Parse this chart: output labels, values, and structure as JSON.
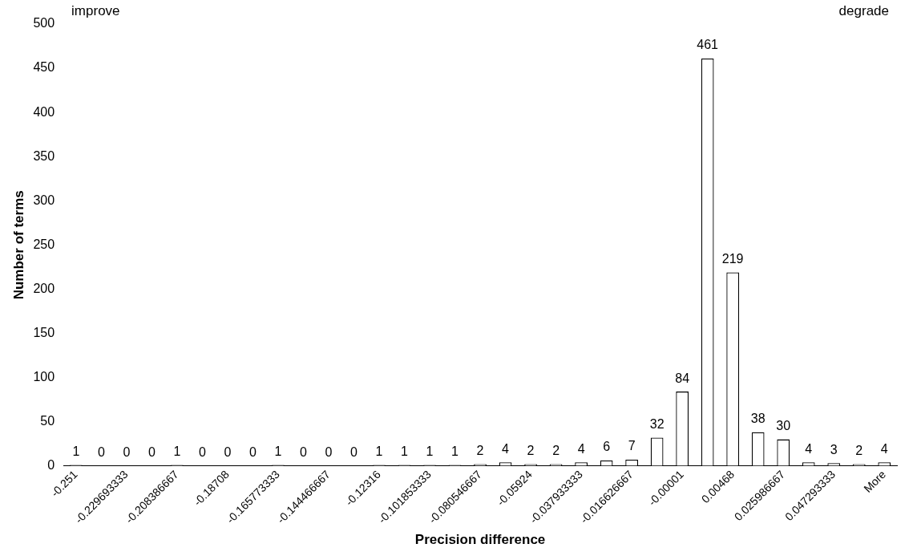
{
  "chart_data": {
    "type": "bar",
    "xlabel": "Precision difference",
    "ylabel": "Number of terms",
    "categories": [
      "-0.251",
      null,
      "-0.229693333",
      null,
      "-0.208386667",
      null,
      "-0.18708",
      null,
      "-0.165773333",
      null,
      "-0.144466667",
      null,
      "-0.12316",
      null,
      "-0.101853333",
      null,
      "-0.080546667",
      null,
      "-0.05924",
      null,
      "-0.037933333",
      null,
      "-0.016626667",
      null,
      "-0.00001",
      null,
      "0.00468",
      null,
      "0.025986667",
      null,
      "0.047293333",
      null,
      "More"
    ],
    "values": [
      1,
      0,
      0,
      0,
      1,
      0,
      0,
      0,
      1,
      0,
      0,
      0,
      1,
      1,
      1,
      1,
      2,
      4,
      2,
      2,
      4,
      6,
      7,
      32,
      84,
      461,
      219,
      38,
      30,
      4,
      3,
      2,
      4
    ],
    "color": "#ffffff",
    "ylim": [
      0,
      500
    ],
    "yticks": [
      0,
      50,
      100,
      150,
      200,
      250,
      300,
      350,
      400,
      450,
      500
    ],
    "data_labels": true,
    "grid": false,
    "legend": false,
    "annotations": [
      "improve",
      "degrade"
    ]
  }
}
